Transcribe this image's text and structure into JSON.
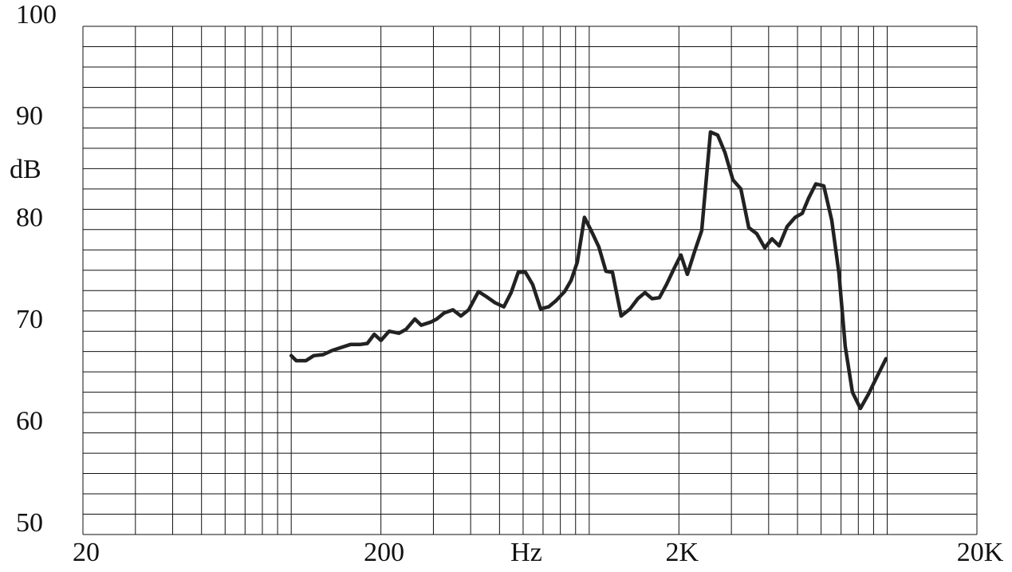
{
  "chart_data": {
    "type": "line",
    "x_label": "Hz",
    "y_label": "dB",
    "x_scale": "log",
    "grid": true,
    "color": "#222222",
    "xlim": [
      20,
      20000
    ],
    "ylim": [
      50,
      100
    ],
    "xticks": [
      20,
      200,
      {
        "value": 2000,
        "label": "2K"
      },
      {
        "value": 20000,
        "label": "20K"
      }
    ],
    "x_minor_ticks": [
      30,
      40,
      50,
      60,
      70,
      80,
      90,
      100,
      300,
      400,
      500,
      600,
      700,
      800,
      900,
      1000,
      3000,
      4000,
      5000,
      6000,
      7000,
      8000,
      9000,
      10000
    ],
    "yticks": [
      50,
      60,
      70,
      80,
      90,
      100
    ],
    "y_minor_ticks": [
      52,
      54,
      56,
      58,
      62,
      64,
      66,
      68,
      72,
      74,
      76,
      78,
      82,
      84,
      86,
      88,
      92,
      94,
      96,
      98
    ],
    "x": [
      100,
      104,
      112,
      119,
      128,
      137,
      147,
      158,
      170,
      180,
      190,
      200,
      213,
      230,
      243,
      260,
      273,
      294,
      308,
      326,
      349,
      371,
      394,
      425,
      452,
      483,
      517,
      547,
      578,
      611,
      646,
      687,
      731,
      773,
      827,
      869,
      912,
      964,
      1019,
      1077,
      1138,
      1197,
      1280,
      1371,
      1456,
      1539,
      1626,
      1719,
      1817,
      1921,
      2031,
      2134,
      2255,
      2385,
      2552,
      2698,
      2853,
      3035,
      3228,
      3430,
      3649,
      3882,
      4104,
      4339,
      4615,
      4907,
      5188,
      5448,
      5761,
      6126,
      6515,
      6888,
      7229,
      7645,
      8130,
      8646,
      9195,
      9905
    ],
    "values": [
      67.6,
      67.1,
      67.1,
      67.6,
      67.7,
      68.1,
      68.4,
      68.7,
      68.7,
      68.8,
      69.7,
      69.1,
      70.0,
      69.8,
      70.2,
      71.2,
      70.6,
      70.9,
      71.2,
      71.8,
      72.1,
      71.5,
      72.1,
      73.9,
      73.4,
      72.8,
      72.4,
      73.8,
      75.8,
      75.8,
      74.6,
      72.2,
      72.4,
      73.0,
      73.9,
      75.0,
      76.8,
      81.2,
      79.8,
      78.3,
      75.9,
      75.8,
      71.5,
      72.2,
      73.2,
      73.8,
      73.2,
      73.3,
      74.6,
      76.1,
      77.5,
      75.6,
      77.8,
      79.9,
      89.6,
      89.3,
      87.6,
      84.9,
      84.0,
      80.2,
      79.6,
      78.2,
      79.1,
      78.4,
      80.3,
      81.2,
      81.6,
      83.1,
      84.5,
      84.3,
      80.9,
      75.7,
      68.5,
      64.0,
      62.4,
      63.8,
      65.4,
      67.3
    ]
  }
}
